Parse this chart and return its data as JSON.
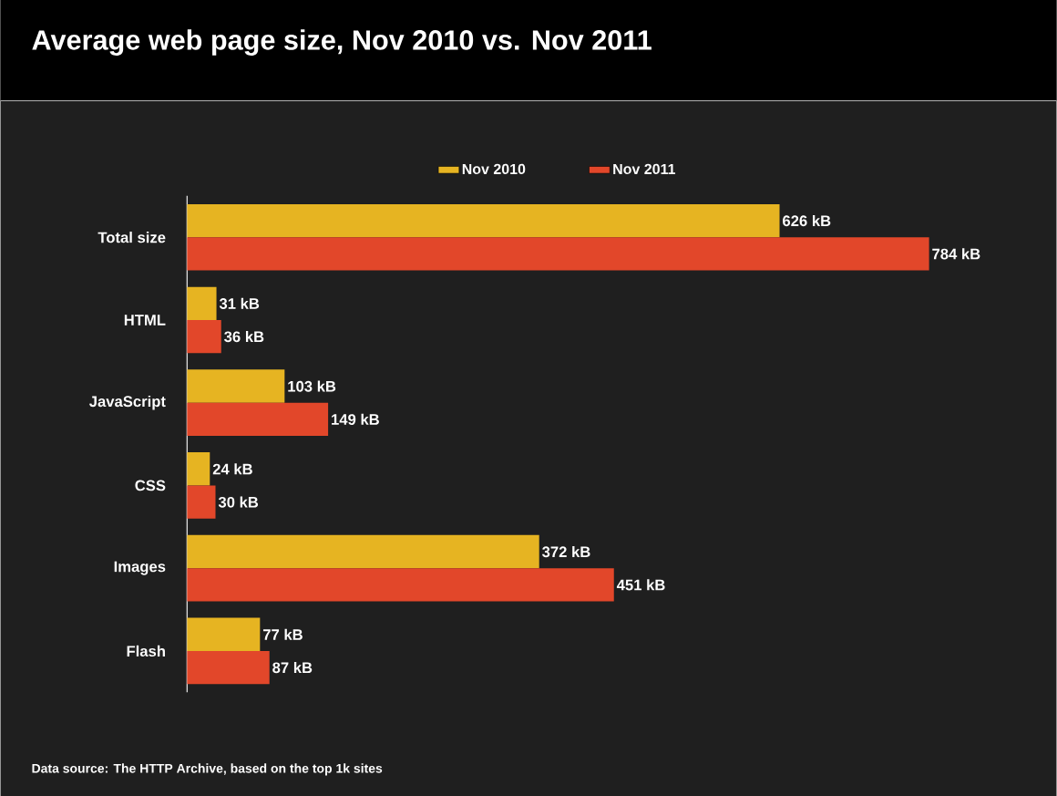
{
  "chart_data": {
    "type": "bar",
    "orientation": "horizontal",
    "title": "Average web page size, Nov 2010 vs. Nov 2011",
    "categories": [
      "Total size",
      "HTML",
      "JavaScript",
      "CSS",
      "Images",
      "Flash"
    ],
    "series": [
      {
        "name": "Nov 2010",
        "color": "#e6b422",
        "values": [
          626,
          31,
          103,
          24,
          372,
          77
        ],
        "value_labels": [
          "626 kB",
          "31 kB",
          "103 kB",
          "24 kB",
          "372 kB",
          "77 kB"
        ]
      },
      {
        "name": "Nov 2011",
        "color": "#e2472a",
        "values": [
          784,
          36,
          149,
          30,
          451,
          87
        ],
        "value_labels": [
          "784 kB",
          "36 kB",
          "149 kB",
          "30 kB",
          "451 kB",
          "87 kB"
        ]
      }
    ],
    "tick_labels": "y",
    "legend": "top",
    "annotations": [
      "Data source: The HTTP Archive, based on the top 1k sites"
    ]
  }
}
